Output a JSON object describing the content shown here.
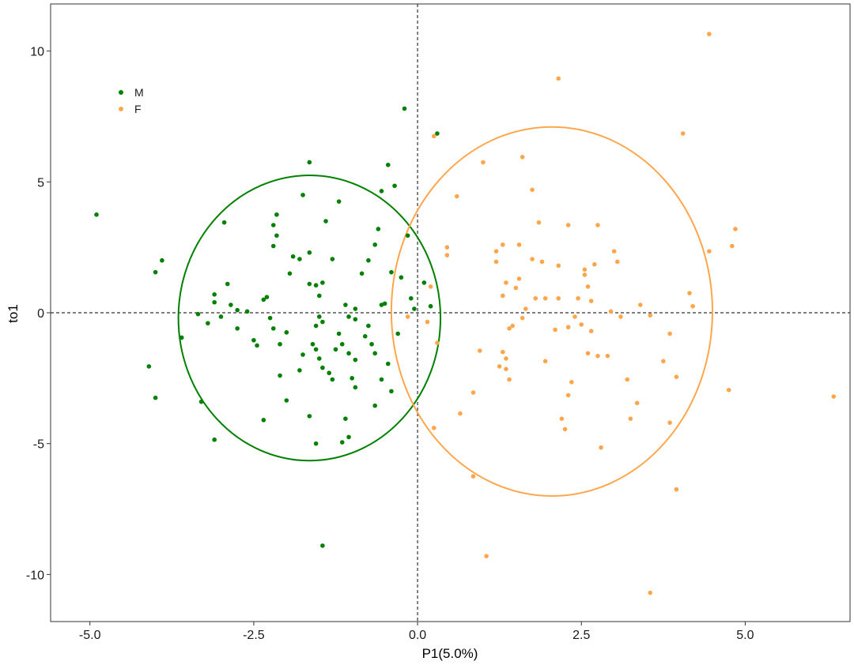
{
  "chart_data": {
    "type": "scatter",
    "title": "",
    "xlabel": "P1(5.0%)",
    "ylabel": "to1",
    "xlim": [
      -5.6,
      6.6
    ],
    "ylim": [
      -11.8,
      11.8
    ],
    "x_ticks": [
      -5.0,
      -2.5,
      0.0,
      2.5,
      5.0
    ],
    "x_tick_labels": [
      "-5.0",
      "-2.5",
      "0.0",
      "2.5",
      "5.0"
    ],
    "y_ticks": [
      -10,
      -5,
      0,
      5,
      10
    ],
    "y_tick_labels": [
      "-10",
      "-5",
      "0",
      "5",
      "10"
    ],
    "grid": false,
    "reference_lines": {
      "x": 0,
      "y": 0,
      "style": "dashed"
    },
    "legend_position": "top-left",
    "series": [
      {
        "name": "M",
        "color": "#008000",
        "ellipse": {
          "center": [
            -1.65,
            -0.2
          ],
          "rx": 2.0,
          "ry": 5.45
        },
        "points": [
          [
            -4.9,
            3.75
          ],
          [
            -3.9,
            2.0
          ],
          [
            -4.0,
            1.55
          ],
          [
            -4.1,
            -2.05
          ],
          [
            -4.0,
            -3.25
          ],
          [
            -3.6,
            -0.95
          ],
          [
            -3.3,
            -3.4
          ],
          [
            -3.1,
            -4.85
          ],
          [
            -3.2,
            -0.4
          ],
          [
            -3.1,
            0.4
          ],
          [
            -3.1,
            0.7
          ],
          [
            -3.0,
            -0.15
          ],
          [
            -2.95,
            3.45
          ],
          [
            -2.9,
            1.1
          ],
          [
            -2.75,
            0.1
          ],
          [
            -2.75,
            -0.6
          ],
          [
            -2.5,
            -1.05
          ],
          [
            -2.45,
            -1.25
          ],
          [
            -2.35,
            0.5
          ],
          [
            -2.3,
            0.6
          ],
          [
            -2.2,
            -0.6
          ],
          [
            -2.25,
            -0.2
          ],
          [
            -2.2,
            2.55
          ],
          [
            -2.2,
            3.35
          ],
          [
            -2.15,
            3.75
          ],
          [
            -2.15,
            2.95
          ],
          [
            -2.1,
            -1.2
          ],
          [
            -2.1,
            -2.4
          ],
          [
            -2.0,
            -3.35
          ],
          [
            -1.95,
            1.5
          ],
          [
            -1.9,
            2.15
          ],
          [
            -1.8,
            2.05
          ],
          [
            -1.75,
            4.5
          ],
          [
            -1.65,
            5.75
          ],
          [
            -1.65,
            2.3
          ],
          [
            -1.55,
            1.05
          ],
          [
            -1.5,
            0.65
          ],
          [
            -1.45,
            1.15
          ],
          [
            -1.5,
            -0.15
          ],
          [
            -1.55,
            -0.5
          ],
          [
            -1.45,
            -0.35
          ],
          [
            -1.6,
            -1.2
          ],
          [
            -1.55,
            -1.4
          ],
          [
            -1.5,
            -1.75
          ],
          [
            -1.45,
            -2.1
          ],
          [
            -1.35,
            -2.3
          ],
          [
            -1.25,
            -1.4
          ],
          [
            -1.3,
            2.05
          ],
          [
            -1.1,
            0.3
          ],
          [
            -1.05,
            -0.15
          ],
          [
            -1.15,
            -1.2
          ],
          [
            -1.05,
            -1.55
          ],
          [
            -0.95,
            -1.8
          ],
          [
            -1.0,
            -2.5
          ],
          [
            -0.95,
            -2.85
          ],
          [
            -1.1,
            -4.05
          ],
          [
            -1.05,
            -4.75
          ],
          [
            -1.15,
            -4.95
          ],
          [
            -1.55,
            -5.0
          ],
          [
            -1.45,
            -8.9
          ],
          [
            -1.65,
            -3.95
          ],
          [
            -0.85,
            1.5
          ],
          [
            -0.95,
            0.15
          ],
          [
            -0.8,
            -0.9
          ],
          [
            -0.75,
            -0.5
          ],
          [
            -0.7,
            -1.2
          ],
          [
            -0.75,
            2.0
          ],
          [
            -0.65,
            2.6
          ],
          [
            -0.6,
            3.2
          ],
          [
            -0.55,
            4.65
          ],
          [
            -0.45,
            5.65
          ],
          [
            -0.35,
            4.85
          ],
          [
            -0.2,
            7.8
          ],
          [
            -0.55,
            0.3
          ],
          [
            -0.65,
            -1.55
          ],
          [
            -0.55,
            -2.55
          ],
          [
            -0.4,
            -3.0
          ],
          [
            -0.45,
            -1.95
          ],
          [
            -0.3,
            -0.8
          ],
          [
            -0.15,
            2.95
          ],
          [
            -0.25,
            1.35
          ],
          [
            -0.1,
            0.55
          ],
          [
            -0.05,
            0.15
          ],
          [
            0.1,
            1.15
          ],
          [
            0.2,
            0.25
          ],
          [
            -0.4,
            1.55
          ],
          [
            0.3,
            6.85
          ],
          [
            -0.65,
            -3.55
          ],
          [
            -1.2,
            4.25
          ],
          [
            -1.4,
            3.5
          ],
          [
            -2.35,
            -4.1
          ],
          [
            -1.75,
            -1.6
          ],
          [
            -1.8,
            -2.2
          ],
          [
            -2.0,
            -0.75
          ],
          [
            -2.6,
            0.05
          ],
          [
            -1.3,
            -2.55
          ],
          [
            -1.2,
            -0.8
          ],
          [
            -0.95,
            -0.25
          ],
          [
            -0.5,
            0.35
          ],
          [
            -3.35,
            -0.05
          ],
          [
            -2.85,
            0.3
          ],
          [
            -1.65,
            1.1
          ]
        ]
      },
      {
        "name": "F",
        "color": "#FFA64D",
        "ellipse": {
          "center": [
            2.05,
            0.05
          ],
          "rx": 2.45,
          "ry": 7.05
        },
        "points": [
          [
            4.45,
            10.65
          ],
          [
            2.15,
            8.95
          ],
          [
            4.05,
            6.85
          ],
          [
            0.25,
            6.75
          ],
          [
            1.6,
            5.95
          ],
          [
            1.0,
            5.75
          ],
          [
            0.6,
            4.45
          ],
          [
            1.75,
            4.7
          ],
          [
            0.2,
            1.0
          ],
          [
            0.15,
            -0.35
          ],
          [
            0.3,
            -1.15
          ],
          [
            0.25,
            -4.4
          ],
          [
            0.65,
            -3.85
          ],
          [
            0.45,
            2.5
          ],
          [
            0.45,
            2.2
          ],
          [
            0.95,
            -1.45
          ],
          [
            0.85,
            -3.05
          ],
          [
            0.85,
            -6.25
          ],
          [
            1.05,
            -9.3
          ],
          [
            1.2,
            2.35
          ],
          [
            1.2,
            1.95
          ],
          [
            1.3,
            2.6
          ],
          [
            1.35,
            1.15
          ],
          [
            1.3,
            0.65
          ],
          [
            1.5,
            0.95
          ],
          [
            1.55,
            1.3
          ],
          [
            1.55,
            2.6
          ],
          [
            1.65,
            0.15
          ],
          [
            1.45,
            -0.5
          ],
          [
            1.4,
            -0.6
          ],
          [
            1.3,
            -1.5
          ],
          [
            1.25,
            -2.05
          ],
          [
            1.35,
            -2.15
          ],
          [
            1.4,
            -2.55
          ],
          [
            1.35,
            -1.75
          ],
          [
            1.9,
            1.95
          ],
          [
            1.85,
            3.45
          ],
          [
            1.8,
            0.55
          ],
          [
            1.95,
            0.55
          ],
          [
            2.15,
            0.55
          ],
          [
            1.95,
            -1.85
          ],
          [
            2.2,
            -4.05
          ],
          [
            2.25,
            -4.45
          ],
          [
            2.3,
            -3.15
          ],
          [
            2.35,
            -2.65
          ],
          [
            2.3,
            -0.55
          ],
          [
            2.5,
            -0.45
          ],
          [
            2.65,
            -0.7
          ],
          [
            2.6,
            1.0
          ],
          [
            2.55,
            1.65
          ],
          [
            2.55,
            1.45
          ],
          [
            2.7,
            1.85
          ],
          [
            2.75,
            3.35
          ],
          [
            2.3,
            3.35
          ],
          [
            2.6,
            -1.55
          ],
          [
            2.75,
            -1.65
          ],
          [
            2.8,
            -5.15
          ],
          [
            2.95,
            0.05
          ],
          [
            3.0,
            2.35
          ],
          [
            3.05,
            1.95
          ],
          [
            2.9,
            -1.65
          ],
          [
            3.2,
            -2.55
          ],
          [
            3.25,
            -4.05
          ],
          [
            3.35,
            -3.45
          ],
          [
            3.4,
            0.3
          ],
          [
            3.55,
            -10.7
          ],
          [
            3.55,
            -0.1
          ],
          [
            3.75,
            -1.85
          ],
          [
            3.85,
            -0.8
          ],
          [
            3.85,
            -4.2
          ],
          [
            3.95,
            -2.45
          ],
          [
            3.95,
            -6.75
          ],
          [
            4.15,
            0.75
          ],
          [
            4.2,
            0.25
          ],
          [
            4.45,
            2.35
          ],
          [
            4.8,
            2.55
          ],
          [
            4.85,
            3.2
          ],
          [
            4.75,
            -2.95
          ],
          [
            6.35,
            -3.2
          ],
          [
            2.45,
            0.55
          ],
          [
            2.65,
            0.45
          ],
          [
            2.15,
            1.8
          ],
          [
            1.75,
            2.05
          ],
          [
            2.4,
            -0.15
          ],
          [
            2.1,
            -0.65
          ],
          [
            3.1,
            -0.15
          ],
          [
            1.6,
            -0.2
          ],
          [
            -0.15,
            -0.15
          ]
        ]
      }
    ]
  }
}
